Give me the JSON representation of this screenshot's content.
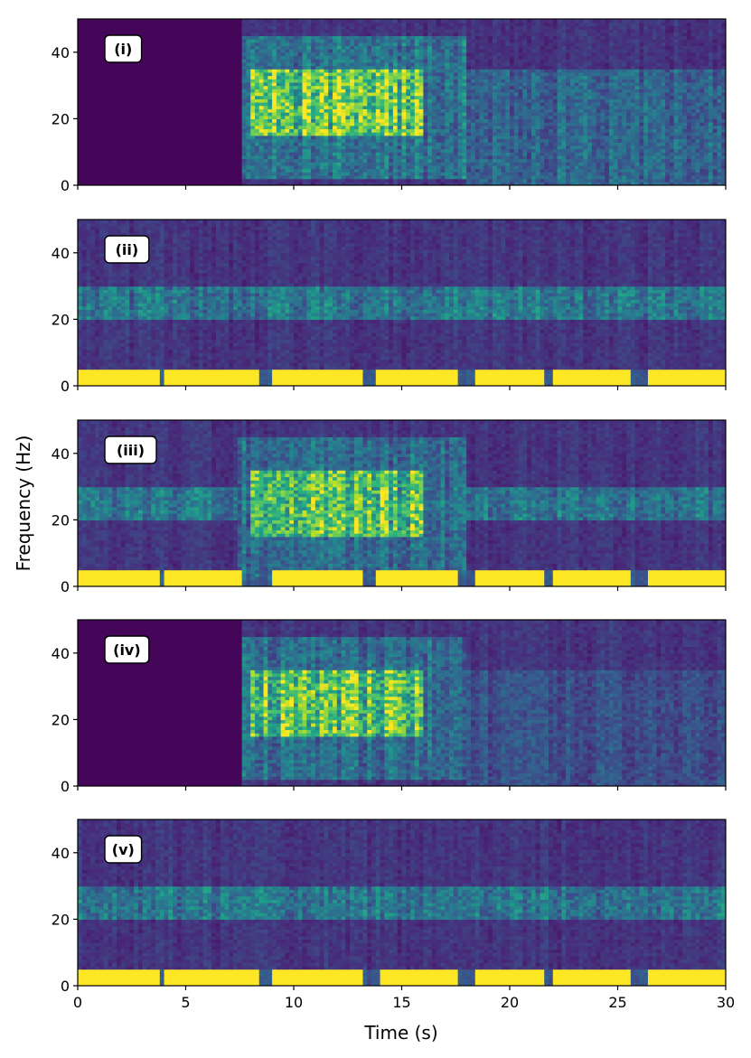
{
  "chart_data": {
    "type": "heatmap",
    "colormap": "viridis",
    "xlabel": "Time (s)",
    "ylabel": "Frequency (Hz)",
    "xlim": [
      0,
      30
    ],
    "ylim": [
      0,
      50
    ],
    "x_ticks": [
      0,
      5,
      10,
      15,
      20,
      25,
      30
    ],
    "y_ticks": [
      0,
      20,
      40
    ],
    "shared_x": true,
    "panels": [
      {
        "label": "(i)",
        "features": [
          {
            "kind": "silent",
            "t": [
              0,
              7.5
            ],
            "f": [
              0,
              50
            ]
          },
          {
            "kind": "broadband-burst",
            "t": [
              7.5,
              18
            ],
            "f": [
              2,
              45
            ],
            "peak_t": [
              8,
              16
            ],
            "peak_f": [
              15,
              35
            ],
            "intensity": 0.95
          },
          {
            "kind": "tail",
            "t": [
              18,
              30
            ],
            "f": [
              0,
              35
            ],
            "intensity": 0.35
          }
        ]
      },
      {
        "label": "(ii)",
        "features": [
          {
            "kind": "band",
            "f": [
              20,
              30
            ],
            "t": [
              0,
              30
            ],
            "intensity": 0.3
          },
          {
            "kind": "low-pulses",
            "f": [
              0,
              5
            ],
            "t_segments": [
              [
                0,
                3.8
              ],
              [
                4,
                8.4
              ],
              [
                9,
                13.2
              ],
              [
                13.8,
                17.5
              ],
              [
                18.5,
                21.5
              ],
              [
                22,
                25.5
              ],
              [
                26.5,
                30
              ]
            ],
            "intensity": 1.0
          }
        ]
      },
      {
        "label": "(iii)",
        "features": [
          {
            "kind": "band",
            "f": [
              20,
              30
            ],
            "t": [
              0,
              30
            ],
            "intensity": 0.3
          },
          {
            "kind": "broadband-burst",
            "t": [
              7.5,
              18
            ],
            "f": [
              2,
              45
            ],
            "peak_t": [
              8,
              16
            ],
            "peak_f": [
              15,
              35
            ],
            "intensity": 0.85
          },
          {
            "kind": "low-pulses",
            "f": [
              0,
              5
            ],
            "t_segments": [
              [
                0,
                3.8
              ],
              [
                4,
                7.5
              ],
              [
                9,
                13.2
              ],
              [
                13.8,
                17.5
              ],
              [
                18.5,
                21.5
              ],
              [
                22,
                25.5
              ],
              [
                26.5,
                30
              ]
            ],
            "intensity": 1.0
          }
        ]
      },
      {
        "label": "(iv)",
        "features": [
          {
            "kind": "silent",
            "t": [
              0,
              7.5
            ],
            "f": [
              0,
              50
            ]
          },
          {
            "kind": "broadband-burst",
            "t": [
              7.5,
              18
            ],
            "f": [
              2,
              45
            ],
            "peak_t": [
              8,
              16
            ],
            "peak_f": [
              15,
              35
            ],
            "intensity": 0.85
          },
          {
            "kind": "tail",
            "t": [
              18,
              30
            ],
            "f": [
              0,
              35
            ],
            "intensity": 0.25
          }
        ]
      },
      {
        "label": "(v)",
        "features": [
          {
            "kind": "band",
            "f": [
              20,
              30
            ],
            "t": [
              0,
              30
            ],
            "intensity": 0.3
          },
          {
            "kind": "low-pulses",
            "f": [
              0,
              5
            ],
            "t_segments": [
              [
                0,
                3.8
              ],
              [
                4,
                8.4
              ],
              [
                9,
                13.2
              ],
              [
                14,
                17.5
              ],
              [
                18.5,
                21.5
              ],
              [
                22,
                25.5
              ],
              [
                26.5,
                30
              ]
            ],
            "intensity": 1.0
          }
        ]
      }
    ]
  }
}
